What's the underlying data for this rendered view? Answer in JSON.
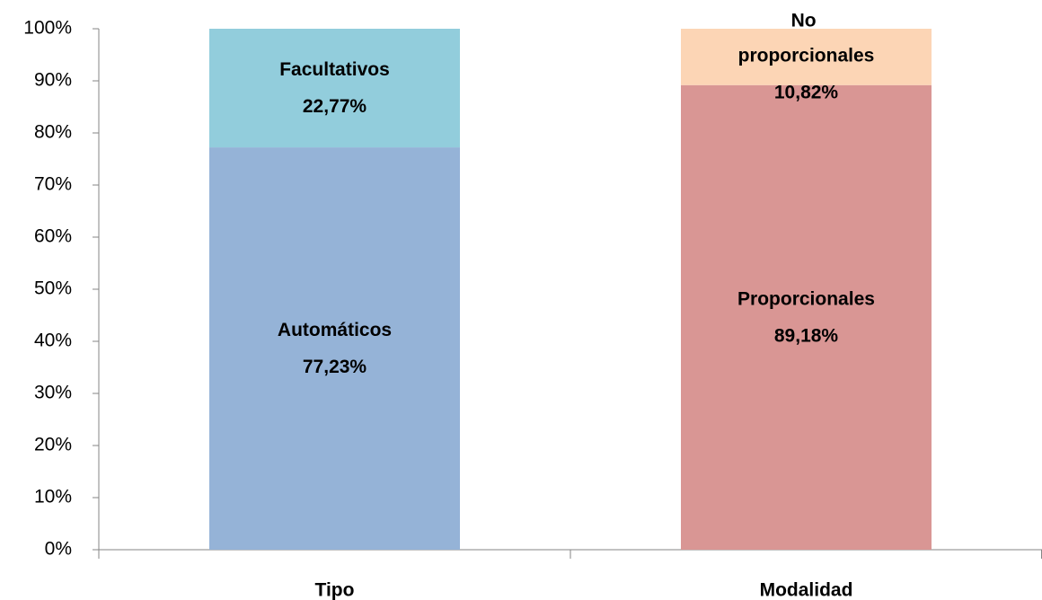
{
  "chart_data": {
    "type": "stacked_bar",
    "categories": [
      "Tipo",
      "Modalidad"
    ],
    "series": [
      {
        "name": "Automáticos",
        "color": "#95b3d7",
        "values": [
          77.23,
          null
        ],
        "value_labels": [
          "77,23%",
          null
        ]
      },
      {
        "name": "Facultativos",
        "color": "#92cddc",
        "values": [
          22.77,
          null
        ],
        "value_labels": [
          "22,77%",
          null
        ]
      },
      {
        "name": "Proporcionales",
        "color": "#d99694",
        "values": [
          null,
          89.18
        ],
        "value_labels": [
          null,
          "89,18%"
        ]
      },
      {
        "name": "No proporcionales",
        "color": "#fcd5b5",
        "values": [
          null,
          10.82
        ],
        "value_labels": [
          null,
          "10,82%"
        ]
      }
    ],
    "ylim": [
      0,
      100
    ],
    "yticks": [
      {
        "value": 0,
        "label": "0%"
      },
      {
        "value": 10,
        "label": "10%"
      },
      {
        "value": 20,
        "label": "20%"
      },
      {
        "value": 30,
        "label": "30%"
      },
      {
        "value": 40,
        "label": "40%"
      },
      {
        "value": 50,
        "label": "50%"
      },
      {
        "value": 60,
        "label": "60%"
      },
      {
        "value": 70,
        "label": "70%"
      },
      {
        "value": 80,
        "label": "80%"
      },
      {
        "value": 90,
        "label": "90%"
      },
      {
        "value": 100,
        "label": "100%"
      }
    ]
  }
}
